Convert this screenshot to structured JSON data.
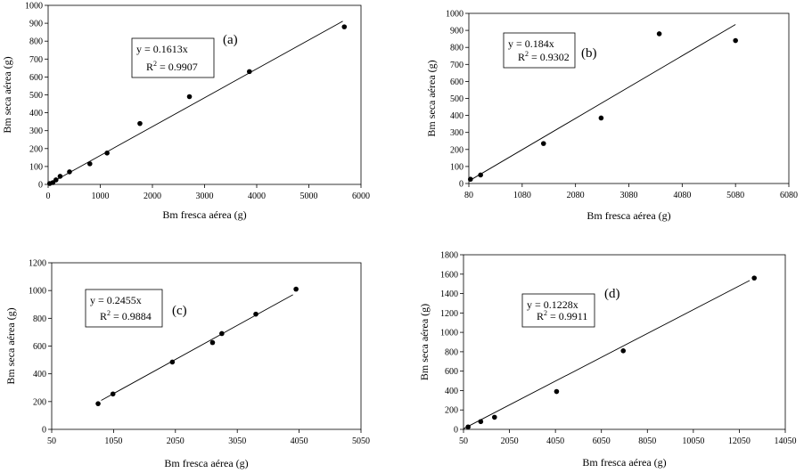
{
  "chart_data": [
    {
      "type": "scatter",
      "panel_label": "(a)",
      "xlabel": "Bm fresca aérea (g)",
      "ylabel": "Bm seca aérea (g)",
      "xlim": [
        0,
        6000
      ],
      "ylim": [
        0,
        1000
      ],
      "xticks": [
        0,
        1000,
        2000,
        3000,
        4000,
        5000,
        6000
      ],
      "yticks": [
        0,
        100,
        200,
        300,
        400,
        500,
        600,
        700,
        800,
        900,
        1000
      ],
      "x": [
        30,
        90,
        150,
        230,
        410,
        800,
        1130,
        1760,
        2710,
        3860,
        5680
      ],
      "y": [
        5,
        10,
        25,
        45,
        70,
        115,
        175,
        340,
        490,
        630,
        880
      ],
      "slope": 0.1613,
      "trend_x": [
        0,
        5650
      ],
      "equation": "y = 0.1613x",
      "r2_prefix": "R",
      "r2_sup": "2",
      "r2_value": " = 0.9907"
    },
    {
      "type": "scatter",
      "panel_label": "(b)",
      "xlabel": "Bm fresca aérea (g)",
      "ylabel": "Bm seca aérea (g)",
      "xlim": [
        80,
        6080
      ],
      "ylim": [
        0,
        1000
      ],
      "xticks": [
        80,
        1080,
        2080,
        3080,
        4080,
        5080,
        6080
      ],
      "yticks": [
        0,
        100,
        200,
        300,
        400,
        500,
        600,
        700,
        800,
        900,
        1000
      ],
      "x": [
        110,
        300,
        1480,
        2560,
        3650,
        5080
      ],
      "y": [
        25,
        50,
        235,
        385,
        880,
        840
      ],
      "slope": 0.184,
      "trend_x": [
        80,
        5080
      ],
      "equation": "y = 0.184x",
      "r2_prefix": "R",
      "r2_sup": "2",
      "r2_value": " = 0.9302"
    },
    {
      "type": "scatter",
      "panel_label": "(c)",
      "xlabel": "Bm fresca aérea (g)",
      "ylabel": "Bm seca aérea (g)",
      "xlim": [
        50,
        5050
      ],
      "ylim": [
        0,
        1200
      ],
      "xticks": [
        50,
        1050,
        2050,
        3050,
        4050,
        5050
      ],
      "yticks": [
        0,
        200,
        400,
        600,
        800,
        1000,
        1200
      ],
      "x": [
        800,
        1040,
        2000,
        2650,
        2800,
        3350,
        4000
      ],
      "y": [
        185,
        255,
        485,
        625,
        690,
        830,
        1010
      ],
      "slope": 0.2455,
      "trend_x": [
        850,
        3950
      ],
      "equation": "y = 0.2455x",
      "r2_prefix": "R",
      "r2_sup": "2",
      "r2_value": " = 0.9884"
    },
    {
      "type": "scatter",
      "panel_label": "(d)",
      "xlabel": "Bm fresca aérea (g)",
      "ylabel": "Bm seca aérea (g)",
      "xlim": [
        50,
        14050
      ],
      "ylim": [
        0,
        1800
      ],
      "xticks": [
        50,
        2050,
        4050,
        6050,
        8050,
        10050,
        12050,
        14050
      ],
      "yticks": [
        0,
        200,
        400,
        600,
        800,
        1000,
        1200,
        1400,
        1600,
        1800
      ],
      "x": [
        250,
        800,
        1400,
        4100,
        7000,
        12700
      ],
      "y": [
        25,
        80,
        125,
        390,
        810,
        1560
      ],
      "slope": 0.1228,
      "trend_x": [
        50,
        12500
      ],
      "equation": "y = 0.1228x",
      "r2_prefix": "R",
      "r2_sup": "2",
      "r2_value": " = 0.9911"
    }
  ]
}
